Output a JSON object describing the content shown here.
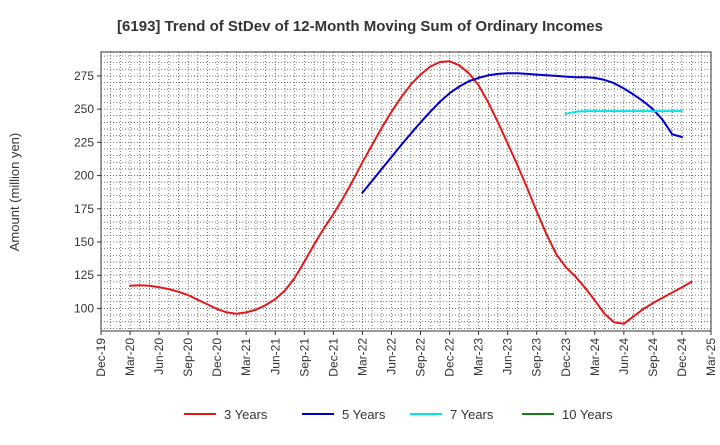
{
  "chart_data": {
    "type": "line",
    "title": "[6193]  Trend of StDev of 12-Month Moving Sum of Ordinary Incomes",
    "xlabel": "",
    "ylabel": "Amount (million yen)",
    "ylim": [
      83,
      293
    ],
    "y_ticks": [
      100,
      125,
      150,
      175,
      200,
      225,
      250,
      275
    ],
    "x_ticks": [
      "Dec-19",
      "Mar-20",
      "Jun-20",
      "Sep-20",
      "Dec-20",
      "Mar-21",
      "Jun-21",
      "Sep-21",
      "Dec-21",
      "Mar-22",
      "Jun-22",
      "Sep-22",
      "Dec-22",
      "Mar-23",
      "Jun-23",
      "Sep-23",
      "Dec-23",
      "Mar-24",
      "Jun-24",
      "Sep-24",
      "Dec-24",
      "Mar-25"
    ],
    "grid": true,
    "legend_position": "bottom",
    "series": [
      {
        "name": "3 Years",
        "color": "#e31a1c",
        "points": [
          [
            "Mar-20",
            117
          ],
          [
            "Apr-20",
            117.5
          ],
          [
            "May-20",
            117
          ],
          [
            "Jun-20",
            116
          ],
          [
            "Jul-20",
            114.5
          ],
          [
            "Aug-20",
            112.5
          ],
          [
            "Sep-20",
            110
          ],
          [
            "Oct-20",
            106.5
          ],
          [
            "Nov-20",
            103
          ],
          [
            "Dec-20",
            99.5
          ],
          [
            "Jan-21",
            97
          ],
          [
            "Feb-21",
            96
          ],
          [
            "Mar-21",
            97
          ],
          [
            "Apr-21",
            99
          ],
          [
            "May-21",
            102.5
          ],
          [
            "Jun-21",
            107
          ],
          [
            "Jul-21",
            113.5
          ],
          [
            "Aug-21",
            123
          ],
          [
            "Sep-21",
            135
          ],
          [
            "Oct-21",
            148
          ],
          [
            "Nov-21",
            160
          ],
          [
            "Dec-21",
            171
          ],
          [
            "Jan-22",
            183
          ],
          [
            "Feb-22",
            196
          ],
          [
            "Mar-22",
            210
          ],
          [
            "Apr-22",
            223
          ],
          [
            "May-22",
            236
          ],
          [
            "Jun-22",
            248
          ],
          [
            "Jul-22",
            259
          ],
          [
            "Aug-22",
            268.5
          ],
          [
            "Sep-22",
            276
          ],
          [
            "Oct-22",
            282
          ],
          [
            "Nov-22",
            285.5
          ],
          [
            "Dec-22",
            286
          ],
          [
            "Jan-23",
            283
          ],
          [
            "Feb-23",
            277
          ],
          [
            "Mar-23",
            268
          ],
          [
            "Apr-23",
            255
          ],
          [
            "May-23",
            240
          ],
          [
            "Jun-23",
            224
          ],
          [
            "Jul-23",
            208
          ],
          [
            "Aug-23",
            191
          ],
          [
            "Sep-23",
            173
          ],
          [
            "Oct-23",
            156
          ],
          [
            "Nov-23",
            141
          ],
          [
            "Dec-23",
            131
          ],
          [
            "Jan-24",
            124
          ],
          [
            "Feb-24",
            115.5
          ],
          [
            "Mar-24",
            106
          ],
          [
            "Apr-24",
            96
          ],
          [
            "May-24",
            89.5
          ],
          [
            "Jun-24",
            88.5
          ],
          [
            "Jul-24",
            94
          ],
          [
            "Aug-24",
            99.5
          ],
          [
            "Sep-24",
            104
          ],
          [
            "Oct-24",
            108
          ],
          [
            "Nov-24",
            112
          ],
          [
            "Dec-24",
            116
          ],
          [
            "Jan-25",
            120
          ]
        ]
      },
      {
        "name": "5 Years",
        "color": "#0000cc",
        "points": [
          [
            "Mar-22",
            187
          ],
          [
            "Apr-22",
            196
          ],
          [
            "May-22",
            205
          ],
          [
            "Jun-22",
            214
          ],
          [
            "Jul-22",
            223
          ],
          [
            "Aug-22",
            231.5
          ],
          [
            "Sep-22",
            240
          ],
          [
            "Oct-22",
            248
          ],
          [
            "Nov-22",
            255.5
          ],
          [
            "Dec-22",
            262
          ],
          [
            "Jan-23",
            267
          ],
          [
            "Feb-23",
            271
          ],
          [
            "Mar-23",
            273.5
          ],
          [
            "Apr-23",
            275.5
          ],
          [
            "May-23",
            276.5
          ],
          [
            "Jun-23",
            277
          ],
          [
            "Jul-23",
            277
          ],
          [
            "Aug-23",
            276.5
          ],
          [
            "Sep-23",
            276
          ],
          [
            "Oct-23",
            275.5
          ],
          [
            "Nov-23",
            275
          ],
          [
            "Dec-23",
            274.5
          ],
          [
            "Jan-24",
            274
          ],
          [
            "Feb-24",
            274
          ],
          [
            "Mar-24",
            273.5
          ],
          [
            "Apr-24",
            272
          ],
          [
            "May-24",
            269.5
          ],
          [
            "Jun-24",
            265.5
          ],
          [
            "Jul-24",
            261
          ],
          [
            "Aug-24",
            256
          ],
          [
            "Sep-24",
            250
          ],
          [
            "Oct-24",
            242
          ],
          [
            "Nov-24",
            231
          ],
          [
            "Dec-24",
            229
          ]
        ]
      },
      {
        "name": "7 Years",
        "color": "#00e5e5",
        "points": [
          [
            "Dec-23",
            246.5
          ],
          [
            "Jan-24",
            248
          ],
          [
            "Feb-24",
            248.5
          ],
          [
            "Mar-24",
            248.5
          ],
          [
            "Apr-24",
            248.5
          ],
          [
            "May-24",
            248.5
          ],
          [
            "Jun-24",
            248.5
          ],
          [
            "Jul-24",
            248.5
          ],
          [
            "Aug-24",
            248.5
          ],
          [
            "Sep-24",
            248.5
          ],
          [
            "Oct-24",
            248.5
          ],
          [
            "Nov-24",
            248.5
          ],
          [
            "Dec-24",
            248.5
          ]
        ]
      },
      {
        "name": "10 Years",
        "color": "#1a7a1a",
        "points": []
      }
    ]
  }
}
